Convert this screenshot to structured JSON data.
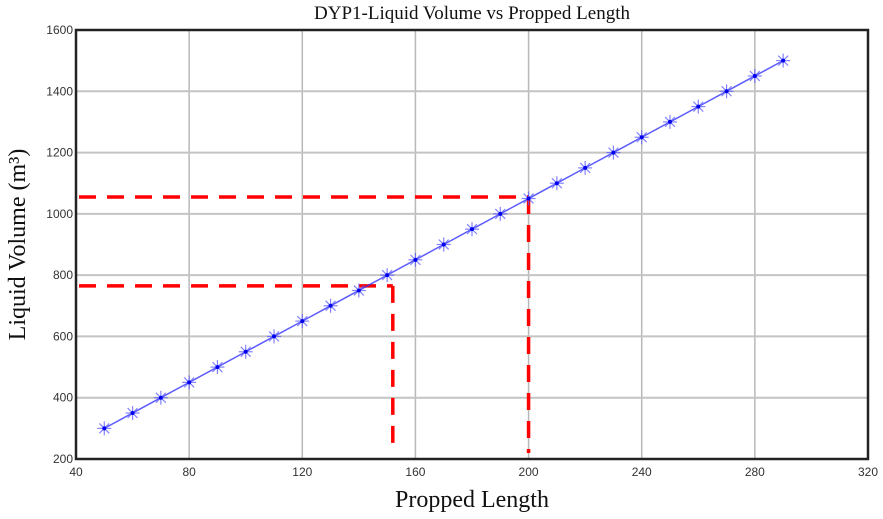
{
  "chart_data": {
    "type": "line",
    "title": "DYP1-Liquid Volume vs Propped Length",
    "xlabel": "Propped Length",
    "ylabel": "Liquid Volume (m³)",
    "xlim": [
      40,
      320
    ],
    "ylim": [
      200,
      1600
    ],
    "xticks": [
      40,
      80,
      120,
      160,
      200,
      240,
      280,
      320
    ],
    "yticks": [
      200,
      400,
      600,
      800,
      1000,
      1200,
      1400,
      1600
    ],
    "grid": true,
    "series": [
      {
        "name": "DYP1",
        "color": "#3333ff",
        "marker": "asterisk",
        "x": [
          50,
          60,
          70,
          80,
          90,
          100,
          110,
          120,
          130,
          140,
          150,
          160,
          170,
          180,
          190,
          200,
          210,
          220,
          230,
          240,
          250,
          260,
          270,
          280,
          290
        ],
        "y": [
          300,
          350,
          400,
          450,
          500,
          550,
          600,
          650,
          700,
          750,
          800,
          850,
          900,
          950,
          1000,
          1050,
          1100,
          1150,
          1200,
          1250,
          1300,
          1350,
          1400,
          1450,
          1500
        ]
      }
    ],
    "annotations": [
      {
        "type": "dashed-guide",
        "color": "#ff0000",
        "x": 152,
        "y": 765
      },
      {
        "type": "dashed-guide",
        "color": "#ff0000",
        "x": 200,
        "y": 1055
      }
    ]
  }
}
